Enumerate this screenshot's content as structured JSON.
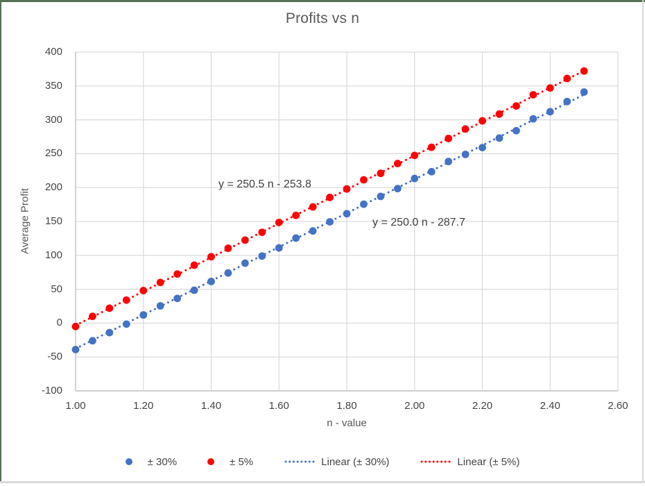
{
  "window": {
    "border_top_color": "#567056",
    "border_left_color": "#567056",
    "border_right_color": "#d9d9d9",
    "border_bottom_color": "#d9d9d9"
  },
  "chart_data": {
    "type": "scatter",
    "title": "Profits vs n",
    "xlabel": "n - value",
    "ylabel": "Average Profit",
    "xlim": [
      1.0,
      2.6
    ],
    "ylim": [
      -100,
      400
    ],
    "grid": true,
    "legend_position": "bottom",
    "x_ticks": [
      "1.00",
      "1.20",
      "1.40",
      "1.60",
      "1.80",
      "2.00",
      "2.20",
      "2.40",
      "2.60"
    ],
    "y_ticks": [
      "400",
      "350",
      "300",
      "250",
      "200",
      "150",
      "100",
      "50",
      "0",
      "-50",
      "-100"
    ],
    "x": [
      1.0,
      1.05,
      1.1,
      1.15,
      1.2,
      1.25,
      1.3,
      1.35,
      1.4,
      1.45,
      1.5,
      1.55,
      1.6,
      1.65,
      1.7,
      1.75,
      1.8,
      1.85,
      1.9,
      1.95,
      2.0,
      2.05,
      2.1,
      2.15,
      2.2,
      2.25,
      2.3,
      2.35,
      2.4,
      2.45,
      2.5
    ],
    "series": [
      {
        "name": "± 30%",
        "color": "#4472C4",
        "marker": "circle",
        "values": [
          -39,
          -26,
          -14,
          -1.5,
          12,
          25.5,
          36.5,
          48.5,
          61.5,
          74,
          88.5,
          99,
          111,
          125.5,
          136,
          149.5,
          161.5,
          175.5,
          187,
          198.5,
          213.5,
          223.5,
          238.5,
          249,
          259,
          273,
          284,
          301.5,
          312,
          327,
          341
        ],
        "trendline": {
          "label": "Linear (± 30%)",
          "equation": "y = 250.0 n - 287.7",
          "slope": 250.0,
          "intercept": -287.7,
          "style": "dotted"
        }
      },
      {
        "name": "± 5%",
        "color": "#FF0000",
        "marker": "circle",
        "values": [
          -5,
          10,
          22,
          34,
          48,
          60,
          72.5,
          85.5,
          98,
          110.5,
          122.5,
          134,
          148.5,
          159,
          171.5,
          185.5,
          198,
          211.5,
          221,
          235.5,
          247.5,
          259.5,
          272.5,
          286.5,
          298.5,
          308.5,
          320.5,
          337,
          347,
          361,
          372
        ],
        "trendline": {
          "label": "Linear (± 5%)",
          "equation": "y = 250.5 n - 253.8",
          "slope": 250.5,
          "intercept": -253.8,
          "style": "dotted"
        }
      }
    ],
    "colors": {
      "gridline": "#d9d9d9",
      "axis_line": "#bfbfbf",
      "text": "#444444",
      "title_text": "#595959"
    }
  },
  "legend": {
    "items": [
      {
        "label": "± 30%",
        "marker": "dot",
        "color": "#4472C4"
      },
      {
        "label": "± 5%",
        "marker": "dot",
        "color": "#FF0000"
      },
      {
        "label": "Linear (± 30%)",
        "marker": "dotted-line",
        "color": "#4472C4"
      },
      {
        "label": "Linear (± 5%)",
        "marker": "dotted-line",
        "color": "#FF0000"
      }
    ]
  }
}
